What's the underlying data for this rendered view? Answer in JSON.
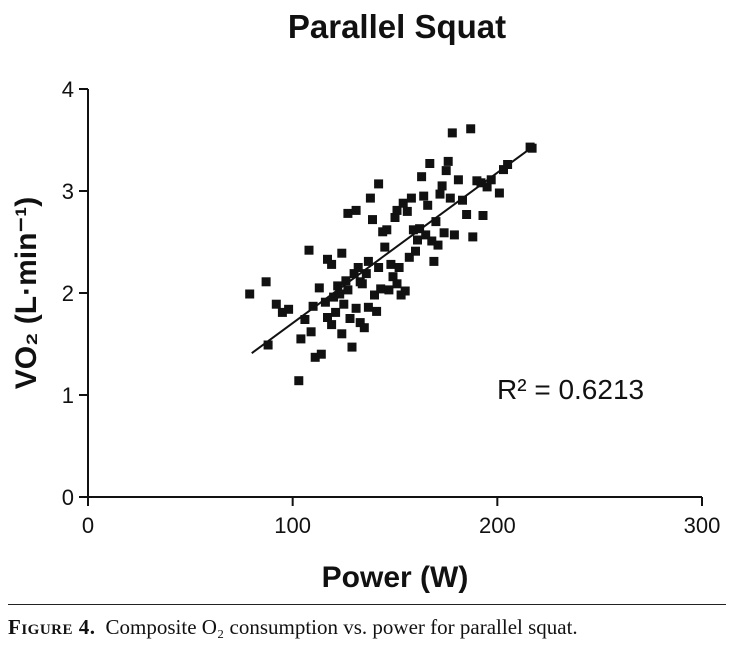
{
  "chart_data": {
    "type": "scatter",
    "title": "Parallel Squat",
    "xlabel": "Power (W)",
    "ylabel": "VO₂ (L·min⁻¹)",
    "xlim": [
      0,
      300
    ],
    "ylim": [
      0,
      4
    ],
    "xticks": [
      0,
      100,
      200,
      300
    ],
    "yticks": [
      0,
      1,
      2,
      3,
      4
    ],
    "grid": false,
    "legend": "none",
    "annotation": "R² = 0.6213",
    "trendline": {
      "x": [
        80,
        217
      ],
      "y": [
        1.41,
        3.43
      ]
    },
    "marker_color": "#111111",
    "points": [
      [
        79,
        1.99
      ],
      [
        87,
        2.11
      ],
      [
        88,
        1.49
      ],
      [
        92,
        1.89
      ],
      [
        95,
        1.81
      ],
      [
        98,
        1.84
      ],
      [
        103,
        1.14
      ],
      [
        104,
        1.55
      ],
      [
        106,
        1.74
      ],
      [
        108,
        2.42
      ],
      [
        109,
        1.62
      ],
      [
        110,
        1.87
      ],
      [
        111,
        1.37
      ],
      [
        113,
        2.05
      ],
      [
        114,
        1.4
      ],
      [
        116,
        1.91
      ],
      [
        117,
        1.76
      ],
      [
        117,
        2.33
      ],
      [
        119,
        2.28
      ],
      [
        119,
        1.69
      ],
      [
        120,
        1.96
      ],
      [
        121,
        1.81
      ],
      [
        122,
        2.07
      ],
      [
        123,
        1.99
      ],
      [
        124,
        2.39
      ],
      [
        124,
        1.6
      ],
      [
        125,
        1.89
      ],
      [
        126,
        2.12
      ],
      [
        127,
        2.03
      ],
      [
        127,
        2.78
      ],
      [
        128,
        1.75
      ],
      [
        129,
        1.47
      ],
      [
        130,
        2.19
      ],
      [
        131,
        1.85
      ],
      [
        131,
        2.81
      ],
      [
        132,
        2.25
      ],
      [
        133,
        2.11
      ],
      [
        133,
        1.71
      ],
      [
        134,
        2.09
      ],
      [
        135,
        1.66
      ],
      [
        136,
        2.19
      ],
      [
        137,
        2.31
      ],
      [
        137,
        1.86
      ],
      [
        138,
        2.93
      ],
      [
        139,
        2.72
      ],
      [
        140,
        1.98
      ],
      [
        141,
        1.82
      ],
      [
        142,
        3.07
      ],
      [
        142,
        2.25
      ],
      [
        143,
        2.04
      ],
      [
        144,
        2.6
      ],
      [
        145,
        2.45
      ],
      [
        146,
        2.62
      ],
      [
        147,
        2.03
      ],
      [
        148,
        2.28
      ],
      [
        149,
        2.16
      ],
      [
        150,
        2.74
      ],
      [
        151,
        2.81
      ],
      [
        151,
        2.09
      ],
      [
        152,
        2.25
      ],
      [
        153,
        1.98
      ],
      [
        154,
        2.88
      ],
      [
        155,
        2.02
      ],
      [
        156,
        2.8
      ],
      [
        157,
        2.35
      ],
      [
        158,
        2.93
      ],
      [
        159,
        2.62
      ],
      [
        160,
        2.41
      ],
      [
        161,
        2.52
      ],
      [
        162,
        2.63
      ],
      [
        163,
        3.14
      ],
      [
        164,
        2.95
      ],
      [
        165,
        2.57
      ],
      [
        166,
        2.86
      ],
      [
        167,
        3.27
      ],
      [
        168,
        2.51
      ],
      [
        169,
        2.31
      ],
      [
        170,
        2.7
      ],
      [
        171,
        2.47
      ],
      [
        172,
        2.97
      ],
      [
        173,
        3.05
      ],
      [
        174,
        2.59
      ],
      [
        175,
        3.2
      ],
      [
        176,
        3.29
      ],
      [
        177,
        2.93
      ],
      [
        178,
        3.57
      ],
      [
        179,
        2.57
      ],
      [
        181,
        3.11
      ],
      [
        183,
        2.91
      ],
      [
        185,
        2.77
      ],
      [
        187,
        3.61
      ],
      [
        188,
        2.55
      ],
      [
        190,
        3.1
      ],
      [
        192,
        3.08
      ],
      [
        193,
        2.76
      ],
      [
        195,
        3.04
      ],
      [
        197,
        3.11
      ],
      [
        201,
        2.98
      ],
      [
        203,
        3.21
      ],
      [
        205,
        3.26
      ],
      [
        216,
        3.43
      ],
      [
        217,
        3.42
      ]
    ]
  },
  "caption": {
    "label": "Figure 4.",
    "text": "Composite O₂ consumption vs. power for parallel squat."
  }
}
